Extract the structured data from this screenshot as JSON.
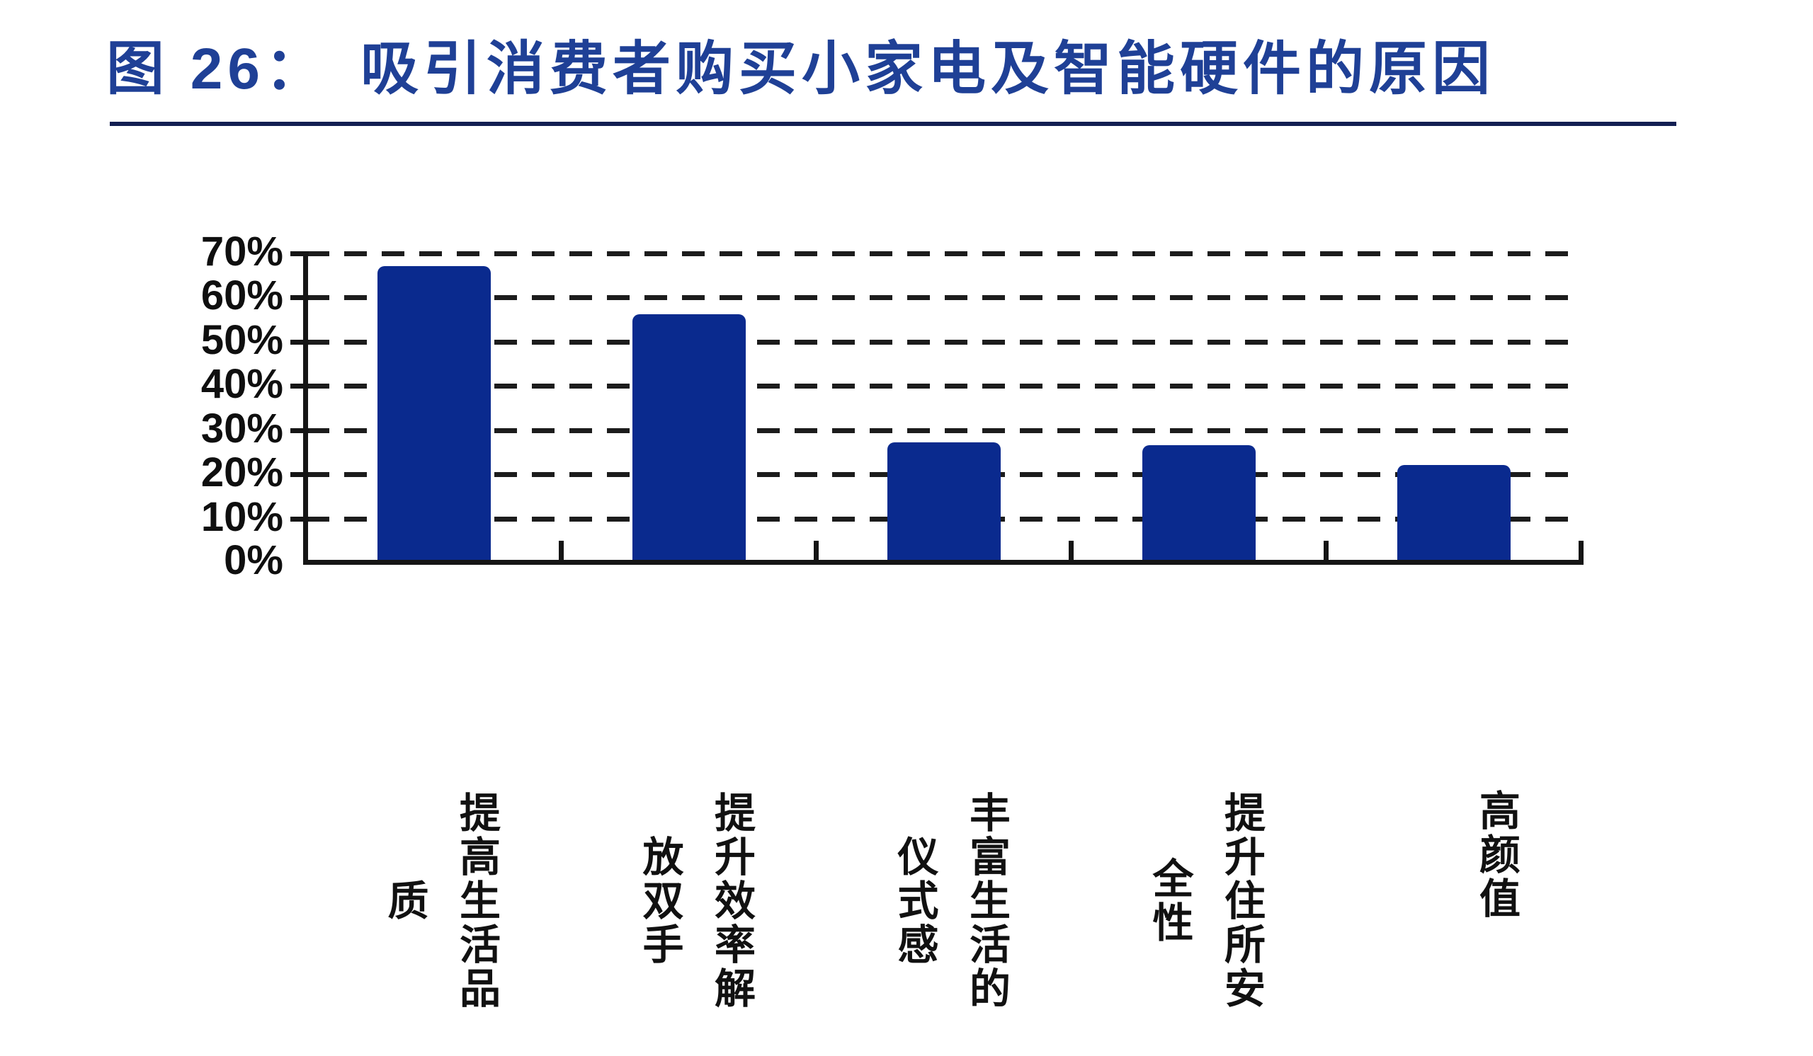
{
  "header": {
    "figure_label": "图 26：",
    "title": "吸引消费者购买小家电及智能硬件的原因"
  },
  "colors": {
    "bar": "#0a2a8e",
    "title": "#1f4096",
    "rule": "#131f52",
    "axis": "#151515",
    "text": "#111111"
  },
  "chart_data": {
    "type": "bar",
    "title": "图 26：吸引消费者购买小家电及智能硬件的原因",
    "categories": [
      "提高生活品质",
      "提升效率解放双手",
      "丰富生活的仪式感",
      "提升住所安全性",
      "高颜值"
    ],
    "values": [
      67,
      56,
      27,
      26.5,
      22
    ],
    "unit": "%",
    "xlabel": "",
    "ylabel": "",
    "ylim": [
      0,
      70
    ],
    "ytick_step": 10,
    "ytick_labels": [
      "70%",
      "60%",
      "50%",
      "40%",
      "30%",
      "20%",
      "10%",
      "0%"
    ],
    "grid": "horizontal-dashed",
    "legend": "none",
    "bar_color": "#0a2a8e"
  }
}
